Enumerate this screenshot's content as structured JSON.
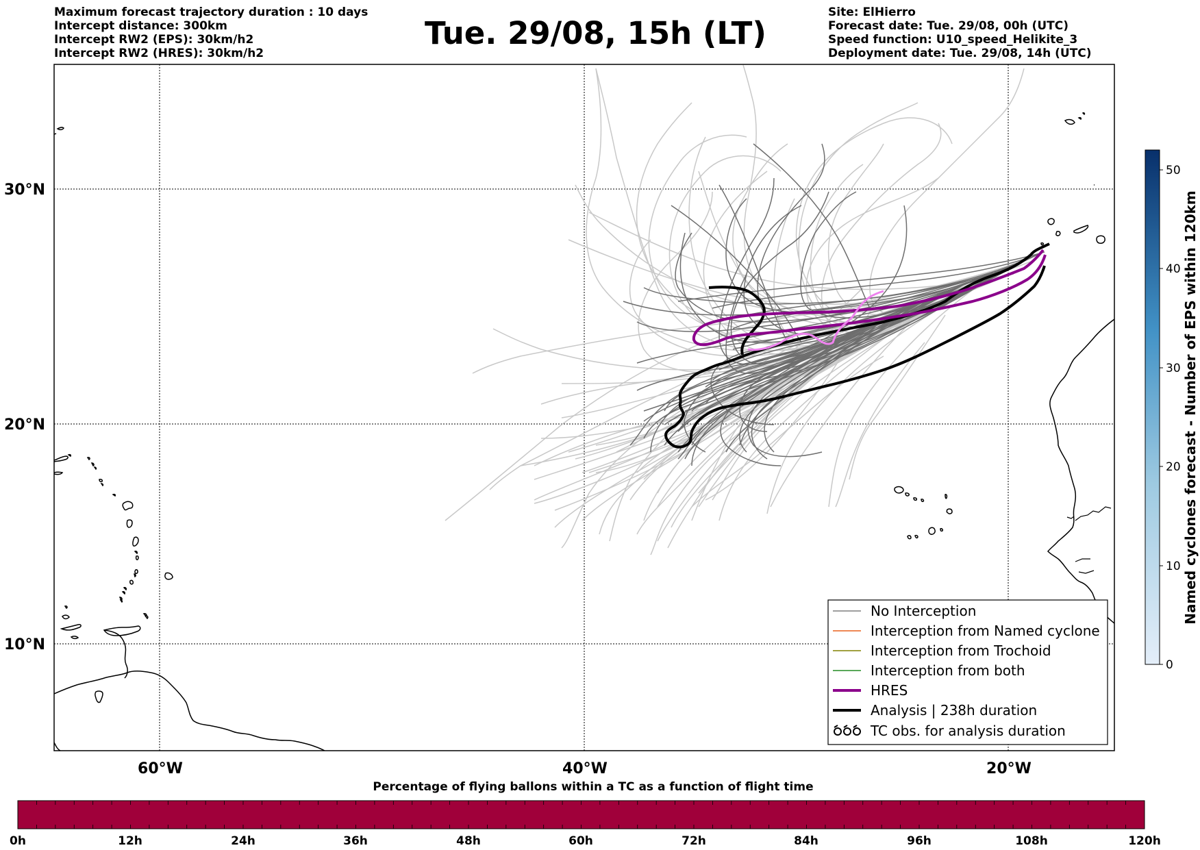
{
  "header": {
    "left_lines": [
      "Maximum forecast trajectory duration : 10 days",
      "Intercept distance: 300km",
      "Intercept RW2 (EPS):  30km/h2",
      "Intercept RW2 (HRES): 30km/h2"
    ],
    "title": "Tue. 29/08, 15h (LT)",
    "right_lines": [
      "Site: ElHierro",
      "Forecast date: Tue. 29/08, 00h (UTC)",
      "Speed function: U10_speed_Helikite_3",
      "Deployment date: Tue. 29/08, 14h (UTC)"
    ]
  },
  "map": {
    "lat_labels": [
      "30°N",
      "20°N",
      "10°N"
    ],
    "lon_labels": [
      "60°W",
      "40°W",
      "20°W"
    ]
  },
  "legend": {
    "items": [
      {
        "label": "No Interception",
        "color": "#7f7f7f"
      },
      {
        "label": "Interception from Named cyclone",
        "color": "#e8601c"
      },
      {
        "label": "Interception from Trochoid",
        "color": "#808000"
      },
      {
        "label": "Interception from both",
        "color": "#228b22"
      },
      {
        "label": "HRES",
        "color": "#8b008b"
      },
      {
        "label": "Analysis | 238h duration",
        "color": "#000000"
      },
      {
        "label": "TC obs. for analysis duration",
        "color": "#000000"
      }
    ]
  },
  "colorbar": {
    "label": "Named cyclones forecast - Number of EPS within 120km",
    "ticks": [
      "0",
      "10",
      "20",
      "30",
      "40",
      "50"
    ],
    "min_color": "#e4eef9",
    "max_color": "#08306b"
  },
  "bottom_bar": {
    "title": "Percentage of flying ballons within a TC as a function of flight time",
    "ticks": [
      "0h",
      "12h",
      "24h",
      "36h",
      "48h",
      "60h",
      "72h",
      "84h",
      "96h",
      "108h",
      "120h"
    ],
    "color": "#a0003a"
  }
}
